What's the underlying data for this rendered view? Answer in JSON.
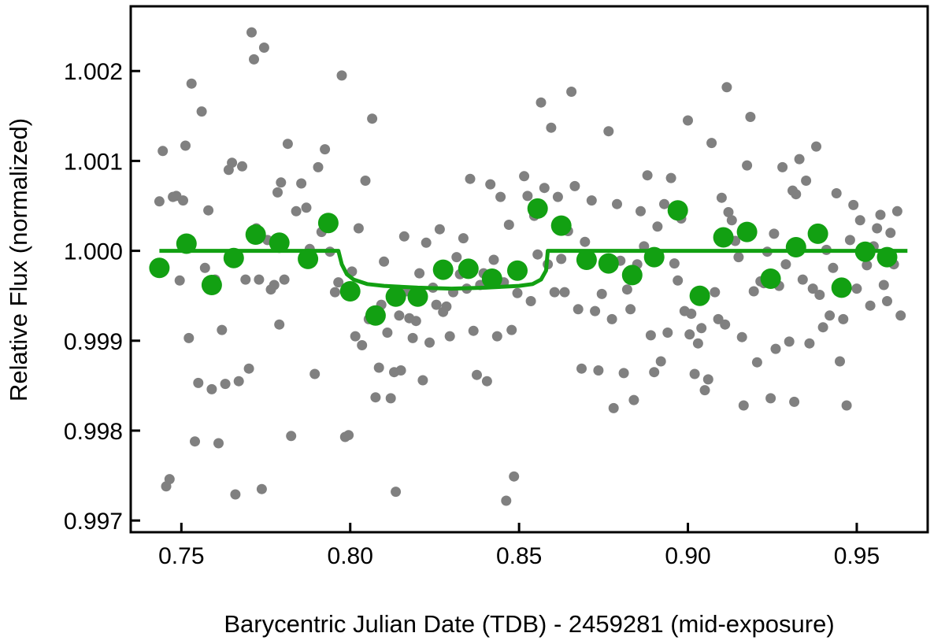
{
  "chart_data": {
    "type": "scatter",
    "title": "",
    "xlabel": "Barycentric Julian Date (TDB) - 2459281 (mid-exposure)",
    "ylabel": "Relative Flux (normalized)",
    "xlim": [
      0.735,
      0.971
    ],
    "ylim": [
      0.99687,
      1.00272
    ],
    "x_ticks": [
      "0.75",
      "0.80",
      "0.85",
      "0.90",
      "0.95"
    ],
    "y_ticks": [
      "0.997",
      "0.998",
      "0.999",
      "1.000",
      "1.001",
      "1.002"
    ],
    "grid": false,
    "legend": "none",
    "colors": {
      "raw": "#808080",
      "binned": "#12a012",
      "model": "#12a012",
      "axis": "#000000"
    },
    "series": [
      {
        "kind": "raw",
        "points": [
          [
            0.7435,
            1.00055
          ],
          [
            0.7445,
            1.00111
          ],
          [
            0.7455,
            0.99738
          ],
          [
            0.7465,
            0.99746
          ],
          [
            0.7475,
            1.0006
          ],
          [
            0.7485,
            1.00061
          ],
          [
            0.7495,
            0.99967
          ],
          [
            0.7505,
            1.00056
          ],
          [
            0.7512,
            1.00117
          ],
          [
            0.7522,
            0.99903
          ],
          [
            0.753,
            1.00186
          ],
          [
            0.754,
            0.99788
          ],
          [
            0.755,
            0.99853
          ],
          [
            0.756,
            1.00155
          ],
          [
            0.757,
            0.99981
          ],
          [
            0.758,
            1.00045
          ],
          [
            0.759,
            0.99846
          ],
          [
            0.76,
            0.99968
          ],
          [
            0.761,
            0.99786
          ],
          [
            0.762,
            0.99912
          ],
          [
            0.763,
            0.99852
          ],
          [
            0.764,
            1.0009
          ],
          [
            0.765,
            1.00098
          ],
          [
            0.766,
            0.99729
          ],
          [
            0.767,
            0.99855
          ],
          [
            0.768,
            1.00094
          ],
          [
            0.769,
            0.99968
          ],
          [
            0.77,
            0.99869
          ],
          [
            0.7708,
            1.00243
          ],
          [
            0.7715,
            1.00213
          ],
          [
            0.7722,
            1.00025
          ],
          [
            0.773,
            0.99968
          ],
          [
            0.7738,
            0.99735
          ],
          [
            0.7745,
            1.00226
          ],
          [
            0.7755,
            1.00012
          ],
          [
            0.7765,
            0.99957
          ],
          [
            0.7775,
            0.99962
          ],
          [
            0.7785,
            1.00065
          ],
          [
            0.779,
            0.99918
          ],
          [
            0.7795,
            1.00076
          ],
          [
            0.7805,
            0.99968
          ],
          [
            0.7815,
            1.00119
          ],
          [
            0.7825,
            0.99794
          ],
          [
            0.784,
            1.00044
          ],
          [
            0.7855,
            1.00075
          ],
          [
            0.787,
            1.00048
          ],
          [
            0.788,
            1.00002
          ],
          [
            0.7895,
            0.99863
          ],
          [
            0.7905,
            1.00093
          ],
          [
            0.7915,
            1.00021
          ],
          [
            0.7925,
            1.00113
          ],
          [
            0.794,
            0.99999
          ],
          [
            0.7955,
            0.99954
          ],
          [
            0.7965,
            0.99965
          ],
          [
            0.7975,
            1.00195
          ],
          [
            0.7985,
            0.99793
          ],
          [
            0.7995,
            0.99795
          ],
          [
            0.8005,
            0.99977
          ],
          [
            0.8015,
            0.99905
          ],
          [
            0.8025,
            1.00025
          ],
          [
            0.8035,
            0.99895
          ],
          [
            0.8045,
            1.00078
          ],
          [
            0.8055,
            0.99924
          ],
          [
            0.8065,
            1.00147
          ],
          [
            0.8075,
            0.99837
          ],
          [
            0.8085,
            0.9987
          ],
          [
            0.8092,
            0.9994
          ],
          [
            0.81,
            0.99988
          ],
          [
            0.811,
            0.99909
          ],
          [
            0.812,
            0.99836
          ],
          [
            0.813,
            0.99865
          ],
          [
            0.8135,
            0.99732
          ],
          [
            0.8145,
            0.99928
          ],
          [
            0.815,
            0.99867
          ],
          [
            0.816,
            1.00016
          ],
          [
            0.8165,
            0.99955
          ],
          [
            0.8175,
            0.99925
          ],
          [
            0.8185,
            0.99903
          ],
          [
            0.8195,
            0.99922
          ],
          [
            0.8205,
            0.99975
          ],
          [
            0.8215,
            0.99856
          ],
          [
            0.8225,
            1.00009
          ],
          [
            0.8235,
            0.99898
          ],
          [
            0.8245,
            0.99959
          ],
          [
            0.8255,
            0.9994
          ],
          [
            0.8265,
            1.00024
          ],
          [
            0.8275,
            0.99932
          ],
          [
            0.8285,
            0.99938
          ],
          [
            0.8295,
            0.99905
          ],
          [
            0.8305,
            0.99954
          ],
          [
            0.8315,
            0.99993
          ],
          [
            0.8325,
            0.99974
          ],
          [
            0.8335,
            1.00014
          ],
          [
            0.8345,
            0.99958
          ],
          [
            0.8355,
            1.0008
          ],
          [
            0.8365,
            0.99911
          ],
          [
            0.8375,
            0.99862
          ],
          [
            0.8385,
            0.99962
          ],
          [
            0.8395,
            0.99975
          ],
          [
            0.8405,
            0.99855
          ],
          [
            0.8415,
            1.00074
          ],
          [
            0.8425,
            0.9999
          ],
          [
            0.8435,
            0.99905
          ],
          [
            0.8445,
            1.0006
          ],
          [
            0.8455,
            0.99965
          ],
          [
            0.8462,
            0.99722
          ],
          [
            0.847,
            1.00029
          ],
          [
            0.8478,
            0.99912
          ],
          [
            0.8485,
            0.99749
          ],
          [
            0.8495,
            0.99953
          ],
          [
            0.8505,
            0.99975
          ],
          [
            0.8515,
            1.00083
          ],
          [
            0.8525,
            1.00061
          ],
          [
            0.8535,
            0.99944
          ],
          [
            0.8545,
            1.00039
          ],
          [
            0.8555,
            0.99996
          ],
          [
            0.8565,
            1.00165
          ],
          [
            0.8575,
            1.0007
          ],
          [
            0.8585,
            0.99985
          ],
          [
            0.8595,
            1.00137
          ],
          [
            0.8605,
            0.99954
          ],
          [
            0.8615,
            1.0006
          ],
          [
            0.8625,
            0.99991
          ],
          [
            0.8635,
            0.99954
          ],
          [
            0.8645,
            1.00022
          ],
          [
            0.8655,
            1.00177
          ],
          [
            0.8665,
            1.00072
          ],
          [
            0.8675,
            0.99935
          ],
          [
            0.8685,
            0.99869
          ],
          [
            0.8695,
            1.0001
          ],
          [
            0.8705,
            0.99987
          ],
          [
            0.8715,
            1.00056
          ],
          [
            0.8725,
            0.99933
          ],
          [
            0.8735,
            0.99867
          ],
          [
            0.8745,
            0.99952
          ],
          [
            0.8755,
            0.99985
          ],
          [
            0.8765,
            1.00133
          ],
          [
            0.8775,
            0.99924
          ],
          [
            0.878,
            0.99825
          ],
          [
            0.879,
            1.00052
          ],
          [
            0.88,
            0.99989
          ],
          [
            0.881,
            0.99864
          ],
          [
            0.882,
            0.99957
          ],
          [
            0.883,
            0.99935
          ],
          [
            0.884,
            0.99834
          ],
          [
            0.885,
            0.99985
          ],
          [
            0.886,
            1.00044
          ],
          [
            0.887,
            1.00005
          ],
          [
            0.888,
            1.00084
          ],
          [
            0.889,
            0.99906
          ],
          [
            0.89,
            0.99865
          ],
          [
            0.891,
            1.00027
          ],
          [
            0.892,
            0.99877
          ],
          [
            0.893,
            1.00052
          ],
          [
            0.894,
            0.99909
          ],
          [
            0.895,
            1.00081
          ],
          [
            0.896,
            0.99986
          ],
          [
            0.897,
            0.99967
          ],
          [
            0.898,
            1.00036
          ],
          [
            0.899,
            0.99933
          ],
          [
            0.9,
            1.00145
          ],
          [
            0.9005,
            0.99907
          ],
          [
            0.901,
            0.9993
          ],
          [
            0.902,
            0.99863
          ],
          [
            0.903,
            0.99897
          ],
          [
            0.904,
            0.99914
          ],
          [
            0.905,
            0.99845
          ],
          [
            0.906,
            0.99857
          ],
          [
            0.907,
            1.0012
          ],
          [
            0.908,
            0.99954
          ],
          [
            0.909,
            0.99924
          ],
          [
            0.91,
            1.00059
          ],
          [
            0.911,
            0.99918
          ],
          [
            0.9115,
            1.00182
          ],
          [
            0.912,
            1.00043
          ],
          [
            0.913,
            1.00034
          ],
          [
            0.914,
            1.00011
          ],
          [
            0.915,
            0.99993
          ],
          [
            0.916,
            0.99904
          ],
          [
            0.9165,
            0.99828
          ],
          [
            0.9175,
            1.00095
          ],
          [
            0.9185,
            1.00149
          ],
          [
            0.9195,
            0.99955
          ],
          [
            0.9205,
            0.99876
          ],
          [
            0.9215,
            0.99966
          ],
          [
            0.9225,
            0.99964
          ],
          [
            0.9235,
            0.99999
          ],
          [
            0.9245,
            0.99836
          ],
          [
            0.9255,
            1.00019
          ],
          [
            0.926,
            0.99891
          ],
          [
            0.927,
            0.99961
          ],
          [
            0.928,
            1.00093
          ],
          [
            0.929,
            0.99985
          ],
          [
            0.93,
            0.99899
          ],
          [
            0.931,
            1.00067
          ],
          [
            0.9315,
            0.99832
          ],
          [
            0.932,
            1.00063
          ],
          [
            0.933,
            1.00102
          ],
          [
            0.934,
            0.99968
          ],
          [
            0.935,
            1.00078
          ],
          [
            0.936,
            0.99897
          ],
          [
            0.937,
            0.99958
          ],
          [
            0.938,
            1.00116
          ],
          [
            0.939,
            0.99951
          ],
          [
            0.94,
            0.99915
          ],
          [
            0.941,
            1.00001
          ],
          [
            0.942,
            0.99928
          ],
          [
            0.943,
            0.99981
          ],
          [
            0.944,
            1.00064
          ],
          [
            0.945,
            0.99877
          ],
          [
            0.946,
            0.99924
          ],
          [
            0.947,
            0.99828
          ],
          [
            0.948,
            1.00012
          ],
          [
            0.949,
            1.00051
          ],
          [
            0.95,
            0.99958
          ],
          [
            0.951,
            1.00034
          ],
          [
            0.952,
            0.99995
          ],
          [
            0.953,
            0.99984
          ],
          [
            0.954,
            0.99939
          ],
          [
            0.955,
            1.00005
          ],
          [
            0.956,
            1.00025
          ],
          [
            0.957,
            1.0004
          ],
          [
            0.958,
            0.99962
          ],
          [
            0.959,
            0.99944
          ],
          [
            0.96,
            1.0002
          ],
          [
            0.961,
            0.99985
          ],
          [
            0.962,
            1.00044
          ],
          [
            0.963,
            0.99928
          ]
        ]
      },
      {
        "kind": "binned",
        "points": [
          [
            0.7435,
            0.99981
          ],
          [
            0.7515,
            1.00008
          ],
          [
            0.759,
            0.99962
          ],
          [
            0.7655,
            0.99992
          ],
          [
            0.772,
            1.00018
          ],
          [
            0.779,
            1.00009
          ],
          [
            0.7875,
            0.99991
          ],
          [
            0.7935,
            1.00031
          ],
          [
            0.8,
            0.99955
          ],
          [
            0.8075,
            0.99928
          ],
          [
            0.8135,
            0.99949
          ],
          [
            0.82,
            0.99949
          ],
          [
            0.8275,
            0.99979
          ],
          [
            0.835,
            0.9998
          ],
          [
            0.842,
            0.99969
          ],
          [
            0.8495,
            0.99978
          ],
          [
            0.8555,
            1.00047
          ],
          [
            0.8625,
            1.00028
          ],
          [
            0.87,
            0.9999
          ],
          [
            0.8765,
            0.99986
          ],
          [
            0.8835,
            0.99973
          ],
          [
            0.89,
            0.99993
          ],
          [
            0.897,
            1.00045
          ],
          [
            0.9035,
            0.9995
          ],
          [
            0.9105,
            1.00015
          ],
          [
            0.9175,
            1.00021
          ],
          [
            0.9245,
            0.99969
          ],
          [
            0.932,
            1.00004
          ],
          [
            0.9385,
            1.00019
          ],
          [
            0.9455,
            0.99959
          ],
          [
            0.9525,
            0.99999
          ],
          [
            0.959,
            0.99993
          ]
        ]
      },
      {
        "kind": "model",
        "points": [
          [
            0.7435,
            1.0
          ],
          [
            0.7965,
            1.0
          ],
          [
            0.7975,
            0.99985
          ],
          [
            0.799,
            0.99974
          ],
          [
            0.801,
            0.99968
          ],
          [
            0.805,
            0.99963
          ],
          [
            0.81,
            0.99961
          ],
          [
            0.82,
            0.99959
          ],
          [
            0.83,
            0.99958
          ],
          [
            0.84,
            0.99959
          ],
          [
            0.85,
            0.99961
          ],
          [
            0.854,
            0.99963
          ],
          [
            0.8565,
            0.99968
          ],
          [
            0.858,
            0.99978
          ],
          [
            0.8585,
            1.0
          ],
          [
            0.965,
            1.0
          ]
        ]
      }
    ]
  }
}
